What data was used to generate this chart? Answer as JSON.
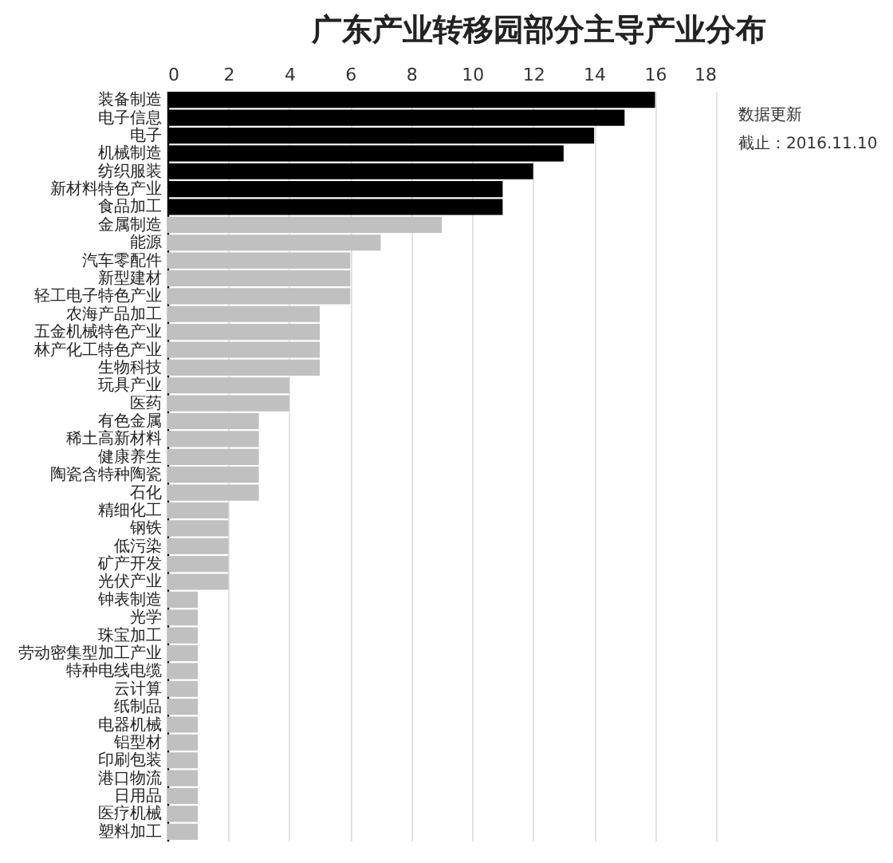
{
  "chart_data": {
    "type": "bar",
    "orientation": "horizontal",
    "title": "广东产业转移园部分主导产业分布",
    "categories": [
      "装备制造",
      "电子信息",
      "电子",
      "机械制造",
      "纺织服装",
      "新材料特色产业",
      "食品加工",
      "金属制造",
      "能源",
      "汽车零配件",
      "新型建材",
      "轻工电子特色产业",
      "农海产品加工",
      "五金机械特色产业",
      "林产化工特色产业",
      "生物科技",
      "玩具产业",
      "医药",
      "有色金属",
      "稀土高新材料",
      "健康养生",
      "陶瓷含特种陶瓷",
      "石化",
      "精细化工",
      "钢铁",
      "低污染",
      "矿产开发",
      "光伏产业",
      "钟表制造",
      "光学",
      "珠宝加工",
      "劳动密集型加工产业",
      "特种电线电缆",
      "云计算",
      "纸制品",
      "电器机械",
      "铝型材",
      "印刷包装",
      "港口物流",
      "日用品",
      "医疗机械",
      "塑料加工"
    ],
    "values": [
      16,
      15,
      14,
      13,
      12,
      11,
      11,
      9,
      7,
      6,
      6,
      6,
      5,
      5,
      5,
      5,
      4,
      4,
      3,
      3,
      3,
      3,
      3,
      2,
      2,
      2,
      2,
      2,
      1,
      1,
      1,
      1,
      1,
      1,
      1,
      1,
      1,
      1,
      1,
      1,
      1,
      1
    ],
    "colors": [
      "#000000",
      "#000000",
      "#000000",
      "#000000",
      "#000000",
      "#000000",
      "#000000",
      "#c0c0c0",
      "#c0c0c0",
      "#c0c0c0",
      "#c0c0c0",
      "#c0c0c0",
      "#c0c0c0",
      "#c0c0c0",
      "#c0c0c0",
      "#c0c0c0",
      "#c0c0c0",
      "#c0c0c0",
      "#c0c0c0",
      "#c0c0c0",
      "#c0c0c0",
      "#c0c0c0",
      "#c0c0c0",
      "#c0c0c0",
      "#c0c0c0",
      "#c0c0c0",
      "#c0c0c0",
      "#c0c0c0",
      "#c0c0c0",
      "#c0c0c0",
      "#c0c0c0",
      "#c0c0c0",
      "#c0c0c0",
      "#c0c0c0",
      "#c0c0c0",
      "#c0c0c0",
      "#c0c0c0",
      "#c0c0c0",
      "#c0c0c0",
      "#c0c0c0",
      "#c0c0c0",
      "#c0c0c0"
    ],
    "xlim": [
      0,
      18
    ],
    "xticks": [
      0,
      2,
      4,
      6,
      8,
      10,
      12,
      14,
      16,
      18
    ],
    "grid": "x",
    "annotations": [
      "数据更新",
      "截止：2016.11.10"
    ]
  }
}
